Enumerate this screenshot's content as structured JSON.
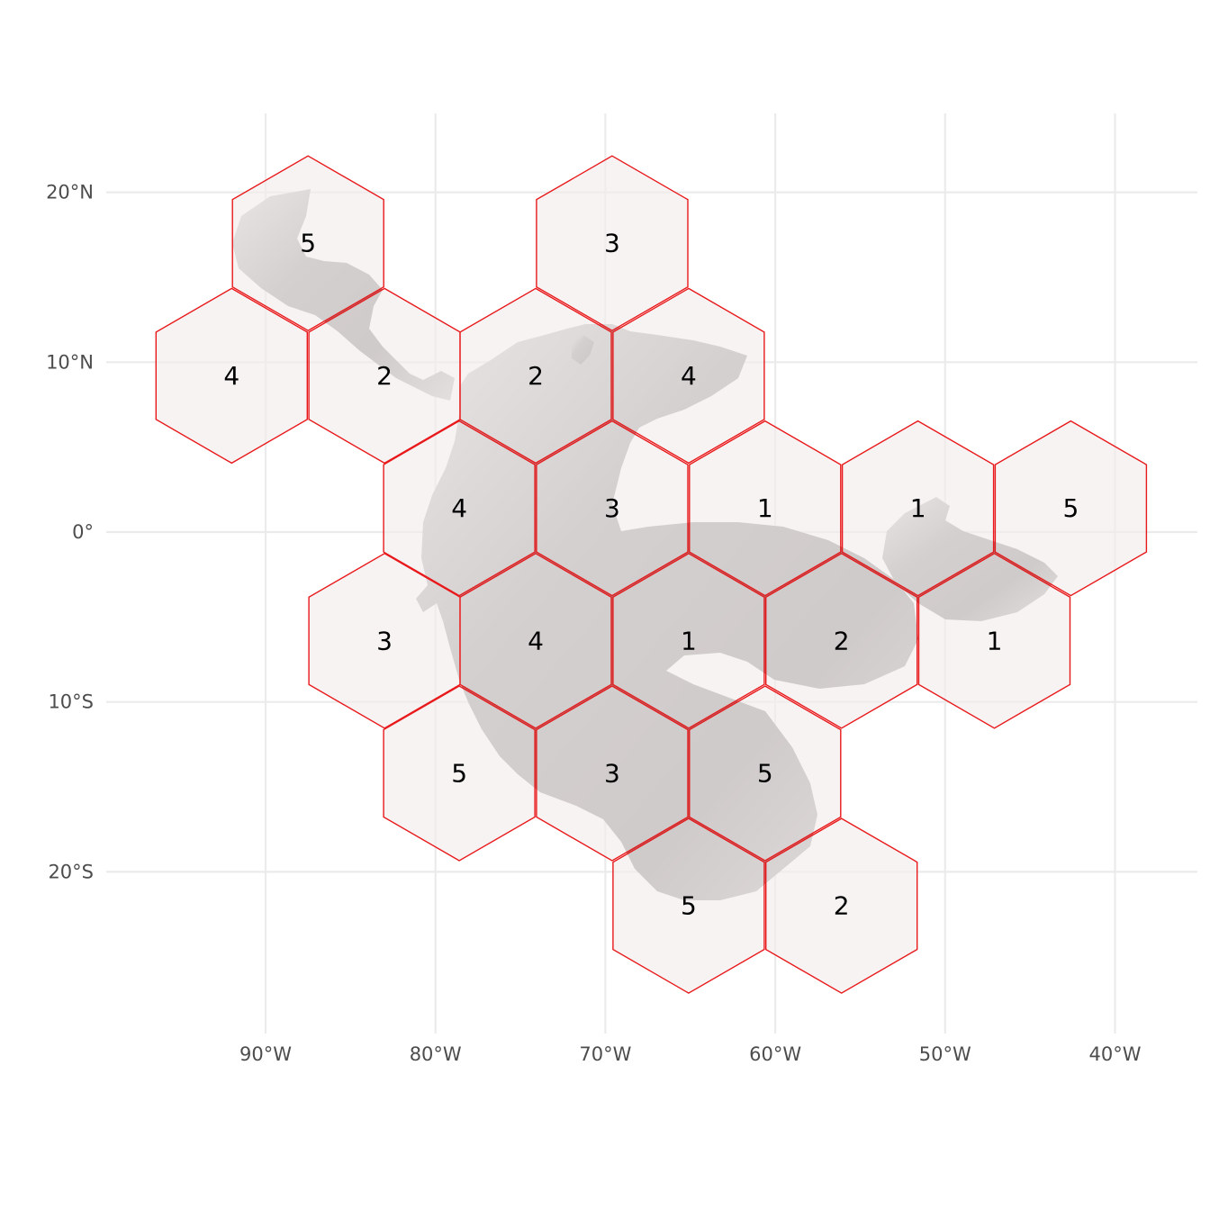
{
  "map": {
    "type": "hex-grid-map",
    "colors": {
      "hex_stroke": "#e8191b",
      "hex_fill": "#f3ecec",
      "land_light": "#d6d6d6",
      "land_dark": "#8f8c8c",
      "grid": "#ebebeb",
      "tick_text": "#4d4d4d"
    },
    "x_ticks": [
      {
        "lon": -90,
        "label": "90°W"
      },
      {
        "lon": -80,
        "label": "80°W"
      },
      {
        "lon": -70,
        "label": "70°W"
      },
      {
        "lon": -60,
        "label": "60°W"
      },
      {
        "lon": -50,
        "label": "50°W"
      },
      {
        "lon": -40,
        "label": "40°W"
      }
    ],
    "y_ticks": [
      {
        "lat": 20,
        "label": "20°N"
      },
      {
        "lat": 10,
        "label": "10°N"
      },
      {
        "lat": 0,
        "label": "0°"
      },
      {
        "lat": -10,
        "label": "10°S"
      },
      {
        "lat": -20,
        "label": "20°S"
      }
    ],
    "hexes": [
      {
        "lon": -87.5,
        "lat": 17.0,
        "label": "5"
      },
      {
        "lon": -69.6,
        "lat": 17.0,
        "label": "3"
      },
      {
        "lon": -92.0,
        "lat": 9.2,
        "label": "4"
      },
      {
        "lon": -83.0,
        "lat": 9.2,
        "label": "2"
      },
      {
        "lon": -74.1,
        "lat": 9.2,
        "label": "2"
      },
      {
        "lon": -65.1,
        "lat": 9.2,
        "label": "4"
      },
      {
        "lon": -78.6,
        "lat": 1.4,
        "label": "4"
      },
      {
        "lon": -69.6,
        "lat": 1.4,
        "label": "3"
      },
      {
        "lon": -60.6,
        "lat": 1.4,
        "label": "1"
      },
      {
        "lon": -51.6,
        "lat": 1.4,
        "label": "1"
      },
      {
        "lon": -42.6,
        "lat": 1.4,
        "label": "5"
      },
      {
        "lon": -83.0,
        "lat": -6.4,
        "label": "3"
      },
      {
        "lon": -74.1,
        "lat": -6.4,
        "label": "4"
      },
      {
        "lon": -65.1,
        "lat": -6.4,
        "label": "1"
      },
      {
        "lon": -56.1,
        "lat": -6.4,
        "label": "2"
      },
      {
        "lon": -47.1,
        "lat": -6.4,
        "label": "1"
      },
      {
        "lon": -78.6,
        "lat": -14.2,
        "label": "5"
      },
      {
        "lon": -69.6,
        "lat": -14.2,
        "label": "3"
      },
      {
        "lon": -60.6,
        "lat": -14.2,
        "label": "5"
      },
      {
        "lon": -65.1,
        "lat": -22.0,
        "label": "5"
      },
      {
        "lon": -56.1,
        "lat": -22.0,
        "label": "2"
      }
    ]
  }
}
